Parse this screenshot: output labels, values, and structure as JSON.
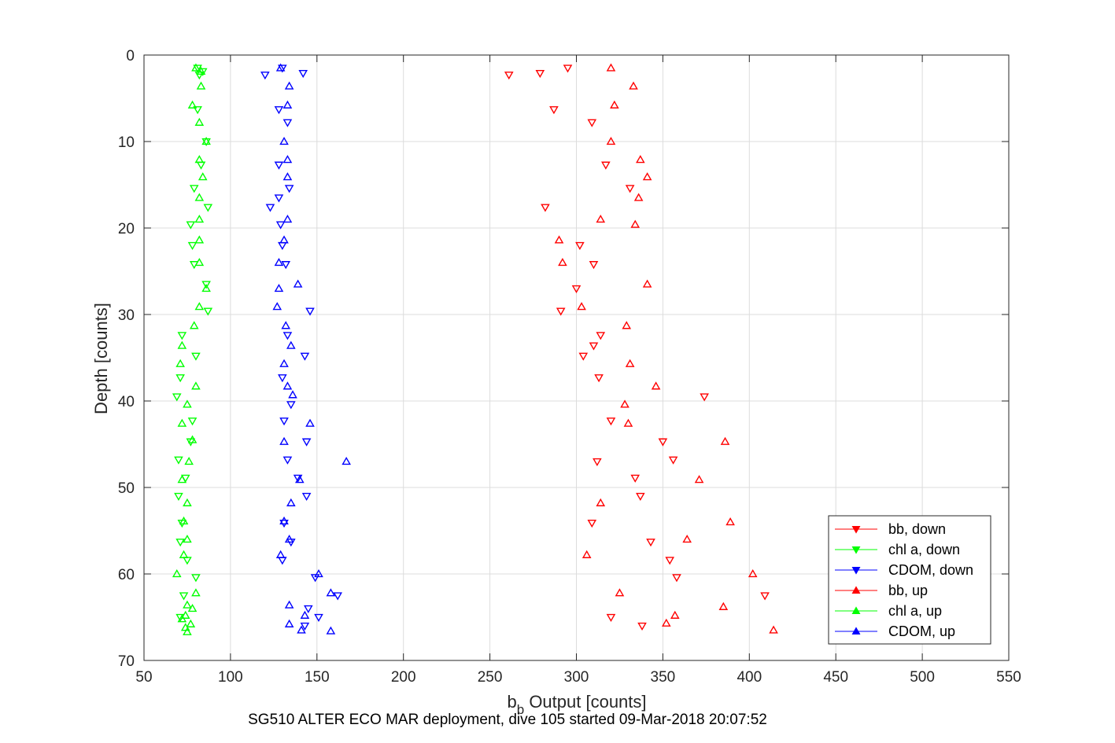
{
  "caption": "SG510 ALTER ECO MAR deployment, dive 105 started 09-Mar-2018 20:07:52",
  "chart_data": {
    "type": "scatter",
    "title": "",
    "xlabel_main": "b",
    "xlabel_sub": "b",
    "xlabel_rest": " Output [counts]",
    "ylabel": "Depth [counts]",
    "xlim": [
      50,
      550
    ],
    "ylim": [
      0,
      70
    ],
    "y_reversed": true,
    "grid": true,
    "legend_position": "bottom-right",
    "x_ticks": [
      "50",
      "100",
      "150",
      "200",
      "250",
      "300",
      "350",
      "400",
      "450",
      "500",
      "550"
    ],
    "y_ticks": [
      "0",
      "10",
      "20",
      "30",
      "40",
      "50",
      "60",
      "70"
    ],
    "series": [
      {
        "name": "bb, down",
        "color": "#ff0000",
        "marker": "triangle-down",
        "points": [
          [
            295,
            1.5
          ],
          [
            279,
            2.1
          ],
          [
            261,
            2.3
          ],
          [
            287,
            6.3
          ],
          [
            309,
            7.8
          ],
          [
            317,
            12.7
          ],
          [
            331,
            15.4
          ],
          [
            282,
            17.6
          ],
          [
            302,
            22
          ],
          [
            310,
            24.2
          ],
          [
            300,
            27
          ],
          [
            291,
            29.6
          ],
          [
            314,
            32.4
          ],
          [
            310,
            33.6
          ],
          [
            304,
            34.8
          ],
          [
            313,
            37.3
          ],
          [
            374,
            39.5
          ],
          [
            320,
            42.3
          ],
          [
            350,
            44.7
          ],
          [
            356,
            46.8
          ],
          [
            312,
            47
          ],
          [
            334,
            48.9
          ],
          [
            337,
            51
          ],
          [
            309,
            54.1
          ],
          [
            343,
            56.3
          ],
          [
            354,
            58.4
          ],
          [
            358,
            60.4
          ],
          [
            409,
            62.5
          ],
          [
            320,
            65
          ],
          [
            338,
            66
          ]
        ]
      },
      {
        "name": "chl a, down",
        "color": "#00ff00",
        "marker": "triangle-down",
        "points": [
          [
            81,
            1.5
          ],
          [
            84,
            1.9
          ],
          [
            82,
            2.3
          ],
          [
            81,
            6.3
          ],
          [
            86,
            10
          ],
          [
            83,
            12.7
          ],
          [
            79,
            15.4
          ],
          [
            87,
            17.6
          ],
          [
            77,
            19.6
          ],
          [
            78,
            22
          ],
          [
            79,
            24.2
          ],
          [
            86,
            26.5
          ],
          [
            87,
            29.6
          ],
          [
            72,
            32.4
          ],
          [
            80,
            34.8
          ],
          [
            71,
            37.3
          ],
          [
            69,
            39.5
          ],
          [
            78,
            42.3
          ],
          [
            77,
            44.7
          ],
          [
            70,
            46.8
          ],
          [
            74,
            48.9
          ],
          [
            70,
            51
          ],
          [
            72,
            54.1
          ],
          [
            71,
            56.3
          ],
          [
            75,
            58.4
          ],
          [
            80,
            60.4
          ],
          [
            73,
            62.5
          ],
          [
            71,
            65
          ]
        ]
      },
      {
        "name": "CDOM, down",
        "color": "#0000ff",
        "marker": "triangle-down",
        "points": [
          [
            130,
            1.5
          ],
          [
            120,
            2.3
          ],
          [
            142,
            2.1
          ],
          [
            128,
            6.3
          ],
          [
            133,
            7.8
          ],
          [
            128,
            12.7
          ],
          [
            134,
            15.4
          ],
          [
            128,
            16.5
          ],
          [
            123,
            17.6
          ],
          [
            129,
            19.6
          ],
          [
            130,
            22
          ],
          [
            132,
            24.2
          ],
          [
            146,
            29.6
          ],
          [
            133,
            32.4
          ],
          [
            143,
            34.8
          ],
          [
            130,
            37.3
          ],
          [
            135,
            40.4
          ],
          [
            131,
            42.3
          ],
          [
            144,
            44.7
          ],
          [
            133,
            46.8
          ],
          [
            139,
            48.9
          ],
          [
            144,
            51
          ],
          [
            131,
            54.1
          ],
          [
            135,
            56.3
          ],
          [
            130,
            58.4
          ],
          [
            149,
            60.4
          ],
          [
            162,
            62.5
          ],
          [
            145,
            64
          ],
          [
            151,
            65
          ],
          [
            143,
            66
          ]
        ]
      },
      {
        "name": "bb, up",
        "color": "#ff0000",
        "marker": "triangle-up",
        "points": [
          [
            320,
            1.5
          ],
          [
            333,
            3.6
          ],
          [
            322,
            5.8
          ],
          [
            320,
            10
          ],
          [
            337,
            12.1
          ],
          [
            341,
            14.1
          ],
          [
            336,
            16.5
          ],
          [
            314,
            19
          ],
          [
            334,
            19.6
          ],
          [
            290,
            21.4
          ],
          [
            292,
            24
          ],
          [
            341,
            26.5
          ],
          [
            303,
            29.1
          ],
          [
            329,
            31.3
          ],
          [
            331,
            35.7
          ],
          [
            346,
            38.3
          ],
          [
            328,
            40.4
          ],
          [
            330,
            42.6
          ],
          [
            386,
            44.7
          ],
          [
            371,
            49.1
          ],
          [
            314,
            51.8
          ],
          [
            389,
            54
          ],
          [
            364,
            56
          ],
          [
            306,
            57.8
          ],
          [
            402,
            60
          ],
          [
            325,
            62.2
          ],
          [
            385,
            63.8
          ],
          [
            357,
            64.8
          ],
          [
            352,
            65.7
          ],
          [
            414,
            66.5
          ]
        ]
      },
      {
        "name": "chl a, up",
        "color": "#00ff00",
        "marker": "triangle-up",
        "points": [
          [
            80,
            1.5
          ],
          [
            83,
            1.9
          ],
          [
            83,
            3.6
          ],
          [
            78,
            5.8
          ],
          [
            82,
            7.8
          ],
          [
            86,
            10
          ],
          [
            82,
            12.1
          ],
          [
            84,
            14.1
          ],
          [
            82,
            16.5
          ],
          [
            82,
            19
          ],
          [
            82,
            21.4
          ],
          [
            82,
            24
          ],
          [
            86,
            27
          ],
          [
            82,
            29.1
          ],
          [
            79,
            31.3
          ],
          [
            72,
            33.6
          ],
          [
            71,
            35.7
          ],
          [
            80,
            38.3
          ],
          [
            75,
            40.4
          ],
          [
            72,
            42.6
          ],
          [
            78,
            44.5
          ],
          [
            76,
            47
          ],
          [
            72,
            49.1
          ],
          [
            75,
            51.8
          ],
          [
            73,
            53.9
          ],
          [
            75,
            56
          ],
          [
            73,
            57.8
          ],
          [
            69,
            60
          ],
          [
            80,
            62.2
          ],
          [
            75,
            63.6
          ],
          [
            78,
            64
          ],
          [
            74,
            64.8
          ],
          [
            72,
            65.2
          ],
          [
            77,
            65.8
          ],
          [
            74,
            66.2
          ],
          [
            75,
            66.7
          ]
        ]
      },
      {
        "name": "CDOM, up",
        "color": "#0000ff",
        "marker": "triangle-up",
        "points": [
          [
            129,
            1.5
          ],
          [
            134,
            3.6
          ],
          [
            133,
            5.8
          ],
          [
            131,
            10
          ],
          [
            133,
            12.1
          ],
          [
            133,
            14.1
          ],
          [
            133,
            19
          ],
          [
            131,
            21.4
          ],
          [
            128,
            24
          ],
          [
            139,
            26.5
          ],
          [
            128,
            27
          ],
          [
            127,
            29.1
          ],
          [
            132,
            31.3
          ],
          [
            135,
            33.6
          ],
          [
            131,
            35.7
          ],
          [
            133,
            38.3
          ],
          [
            136,
            39.3
          ],
          [
            146,
            42.6
          ],
          [
            131,
            44.7
          ],
          [
            167,
            47
          ],
          [
            140,
            49.1
          ],
          [
            135,
            51.8
          ],
          [
            131,
            53.9
          ],
          [
            134,
            56
          ],
          [
            129,
            57.8
          ],
          [
            151,
            60
          ],
          [
            158,
            62.2
          ],
          [
            134,
            63.6
          ],
          [
            143,
            64.8
          ],
          [
            134,
            65.8
          ],
          [
            141,
            66.5
          ],
          [
            158,
            66.6
          ]
        ]
      }
    ]
  }
}
